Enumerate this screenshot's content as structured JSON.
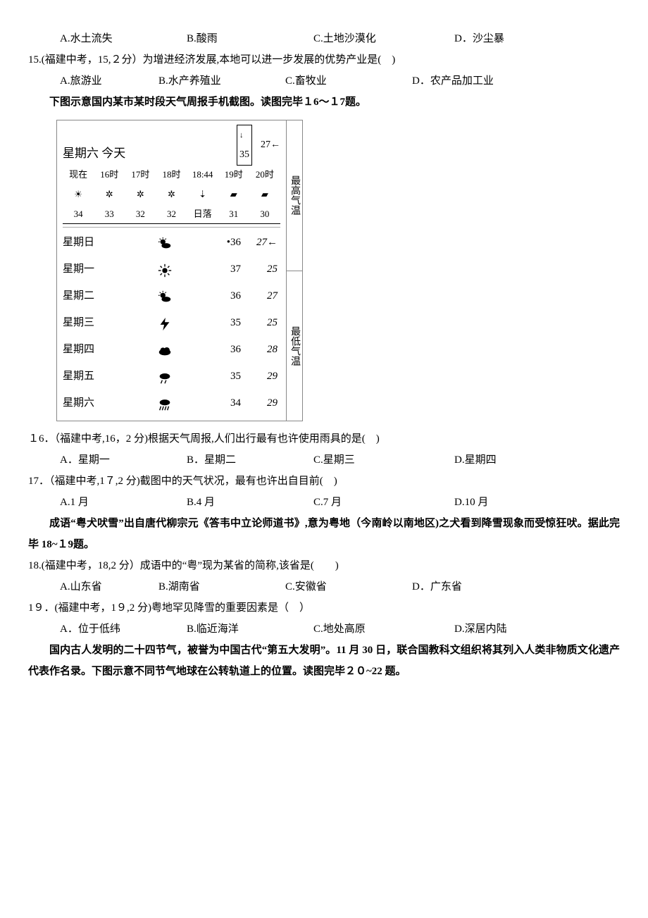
{
  "q14": {
    "options": {
      "a": "A.水土流失",
      "b": "B.酸雨",
      "c": "C.土地沙漠化",
      "d": "D．沙尘暴"
    }
  },
  "q15": {
    "stem": "15.(福建中考，15,２分）为增进经济发展,本地可以进一步发展的优势产业是(　)",
    "options": {
      "a": "A.旅游业",
      "b": "B.水产养殖业",
      "c": "C.畜牧业",
      "d": "D．农产品加工业"
    }
  },
  "intro16": "下图示意国内某市某时段天气周报手机截图。读图完毕１6～１7题。",
  "phone": {
    "today_label": "星期六 今天",
    "today_hi_marker": "35",
    "today_lo_marker": "27",
    "hourly": {
      "labels": [
        "现在",
        "16时",
        "17时",
        "18时",
        "18:44",
        "19时",
        "20时"
      ],
      "temps": [
        "34",
        "33",
        "32",
        "32",
        "日落",
        "31",
        "30"
      ]
    },
    "days": [
      {
        "day": "星期日",
        "icon": "sun-cloud",
        "hi": "36",
        "lo": "27"
      },
      {
        "day": "星期一",
        "icon": "sun",
        "hi": "37",
        "lo": "25"
      },
      {
        "day": "星期二",
        "icon": "sun-cloud",
        "hi": "36",
        "lo": "27"
      },
      {
        "day": "星期三",
        "icon": "bolt",
        "hi": "35",
        "lo": "25"
      },
      {
        "day": "星期四",
        "icon": "cloud",
        "hi": "36",
        "lo": "28"
      },
      {
        "day": "星期五",
        "icon": "cloud-rain",
        "hi": "35",
        "lo": "29"
      },
      {
        "day": "星期六",
        "icon": "heavy-rain",
        "hi": "34",
        "lo": "29"
      }
    ],
    "side_hi": "最高气温",
    "side_lo": "最低气温"
  },
  "q16": {
    "stem": "１6．（福建中考,16，2 分)根据天气周报,人们出行最有也许使用雨具的是(　)",
    "options": {
      "a": "A．星期一",
      "b": "B．星期二",
      "c": "C.星期三",
      "d": "D.星期四"
    }
  },
  "q17": {
    "stem": "17．（福建中考,1７,2 分)截图中的天气状况，最有也许出自目前(　)",
    "options": {
      "a": "A.1 月",
      "b": "B.4 月",
      "c": "C.7 月",
      "d": "D.10 月"
    }
  },
  "intro18": "成语“粤犬吠雪”出自唐代柳宗元《答韦中立论师道书》,意为粤地（今南岭以南地区)之犬看到降雪现象而受惊狂吠。据此完毕 18~１9题。",
  "q18": {
    "stem": "18.(福建中考，18,2 分）成语中的“粤”现为某省的简称,该省是(　　)",
    "options": {
      "a": "A.山东省",
      "b": "B.湖南省",
      "c": "C.安徽省",
      "d": "D．广东省"
    }
  },
  "q19": {
    "stem": "1９．(福建中考，1９,2 分)粤地罕见降雪的重要因素是（　）",
    "options": {
      "a": "A．位于低纬",
      "b": "B.临近海洋",
      "c": "C.地处高原",
      "d": "D.深居内陆"
    }
  },
  "intro20": "国内古人发明的二十四节气，被誉为中国古代“第五大发明”。11 月 30 日，联合国教科文组织将其列入人类非物质文化遗产代表作名录。下图示意不同节气地球在公转轨道上的位置。读图完毕２０~22 题。"
}
